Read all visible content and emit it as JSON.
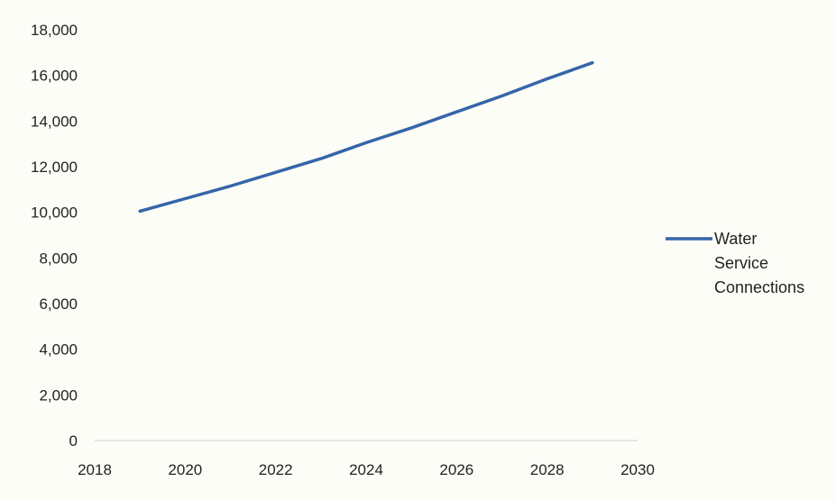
{
  "chart_data": {
    "type": "line",
    "title": "",
    "xlabel": "",
    "ylabel": "",
    "xlim": [
      2018,
      2030
    ],
    "ylim": [
      0,
      18000
    ],
    "x_ticks": [
      2018,
      2020,
      2022,
      2024,
      2026,
      2028,
      2030
    ],
    "x_tick_labels": [
      "2018",
      "2020",
      "2022",
      "2024",
      "2026",
      "2028",
      "2030"
    ],
    "y_ticks": [
      0,
      2000,
      4000,
      6000,
      8000,
      10000,
      12000,
      14000,
      16000,
      18000
    ],
    "y_tick_labels": [
      "0",
      "2,000",
      "4,000",
      "6,000",
      "8,000",
      "10,000",
      "12,000",
      "14,000",
      "16,000",
      "18,000"
    ],
    "grid": false,
    "legend_position": "right",
    "series": [
      {
        "name": "Water Service Connections",
        "color": "#3565a8",
        "x": [
          2019,
          2020,
          2021,
          2022,
          2023,
          2024,
          2025,
          2026,
          2027,
          2028,
          2029
        ],
        "y": [
          10050,
          10600,
          11150,
          11750,
          12350,
          13050,
          13700,
          14400,
          15100,
          15850,
          16550
        ]
      }
    ],
    "legend": {
      "lines": [
        "Water",
        "Service",
        "Connections"
      ]
    }
  }
}
